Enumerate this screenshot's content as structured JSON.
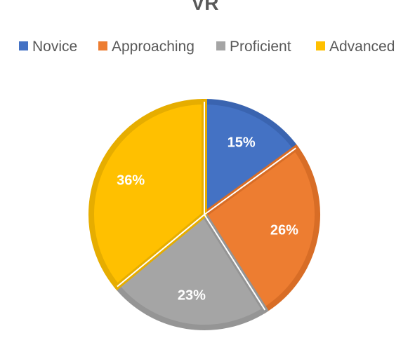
{
  "chart_data": {
    "type": "pie",
    "title": "VR",
    "legend_position": "top",
    "categories": [
      "Novice",
      "Approaching",
      "Proficient",
      "Advanced"
    ],
    "values": [
      15,
      26,
      23,
      36
    ],
    "value_labels": [
      "15%",
      "26%",
      "23%",
      "36%"
    ],
    "colors": [
      "#4472C4",
      "#ED7D31",
      "#A5A5A5",
      "#FFC000"
    ],
    "border_colors": [
      "#3A64B0",
      "#D86D26",
      "#959595",
      "#E6AD00"
    ],
    "label_color": "#FFFFFF"
  }
}
